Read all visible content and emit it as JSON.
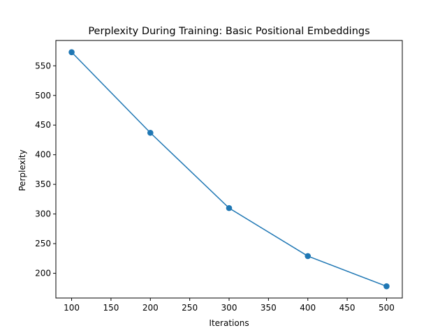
{
  "chart_data": {
    "type": "line",
    "title": "Perplexity During Training: Basic Positional Embeddings",
    "xlabel": "Iterations",
    "ylabel": "Perplexity",
    "x": [
      100,
      200,
      300,
      400,
      500
    ],
    "series": [
      {
        "values": [
          573,
          437,
          310,
          229,
          178
        ]
      }
    ],
    "xlim": [
      80,
      520
    ],
    "ylim": [
      158.25,
      592.75
    ],
    "xticks": [
      100,
      150,
      200,
      250,
      300,
      350,
      400,
      450,
      500
    ],
    "yticks": [
      200,
      250,
      300,
      350,
      400,
      450,
      500,
      550
    ],
    "grid": false,
    "markers": true,
    "color": "#1f77b4"
  }
}
